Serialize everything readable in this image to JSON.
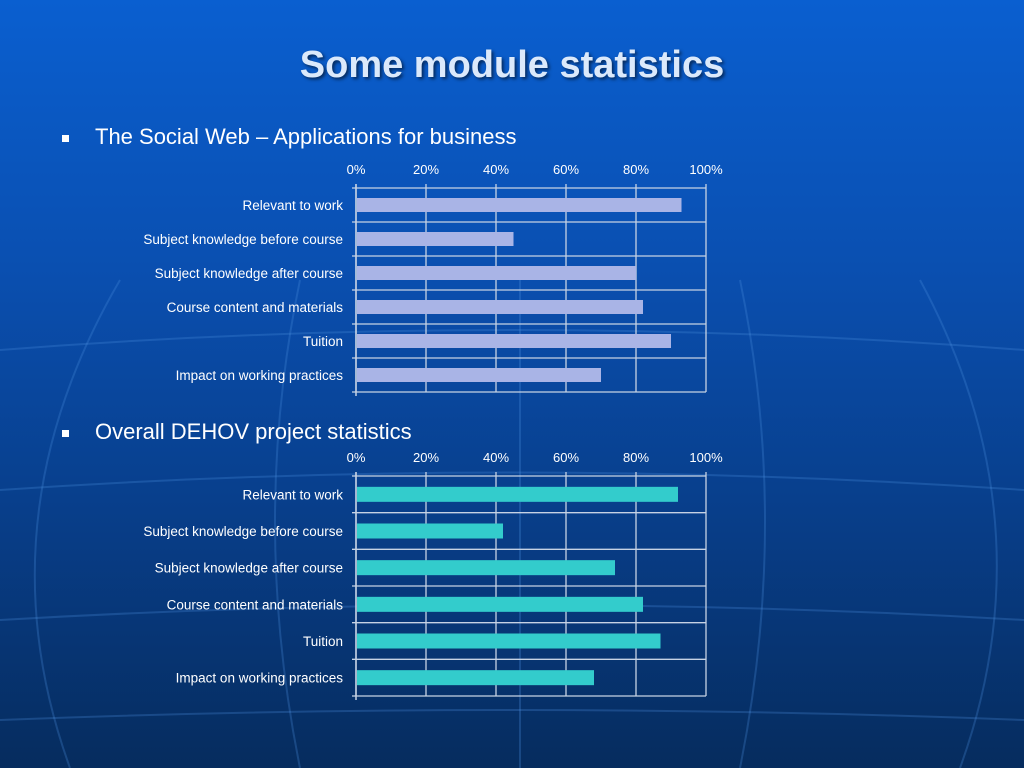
{
  "slide": {
    "title": "Some module statistics",
    "bullets": [
      "The Social Web – Applications for business",
      "Overall DEHOV project statistics"
    ]
  },
  "colors": {
    "chart1_bar": "#a9b4e6",
    "chart2_bar": "#33cccc",
    "grid": "#c6d2e4",
    "label_text": "#ffffff"
  },
  "chart_data": [
    {
      "type": "bar",
      "orientation": "horizontal",
      "categories": [
        "Relevant to work",
        "Subject knowledge before course",
        "Subject knowledge after course",
        "Course content and materials",
        "Tuition",
        "Impact on working practices"
      ],
      "values": [
        93,
        45,
        80,
        82,
        90,
        70
      ],
      "xlim": [
        0,
        100
      ],
      "ticks": [
        "0%",
        "20%",
        "40%",
        "60%",
        "80%",
        "100%"
      ],
      "grid": true
    },
    {
      "type": "bar",
      "orientation": "horizontal",
      "categories": [
        "Relevant to work",
        "Subject knowledge before course",
        "Subject knowledge after course",
        "Course content and materials",
        "Tuition",
        "Impact on working practices"
      ],
      "values": [
        92,
        42,
        74,
        82,
        87,
        68
      ],
      "xlim": [
        0,
        100
      ],
      "ticks": [
        "0%",
        "20%",
        "40%",
        "60%",
        "80%",
        "100%"
      ],
      "grid": true
    }
  ]
}
